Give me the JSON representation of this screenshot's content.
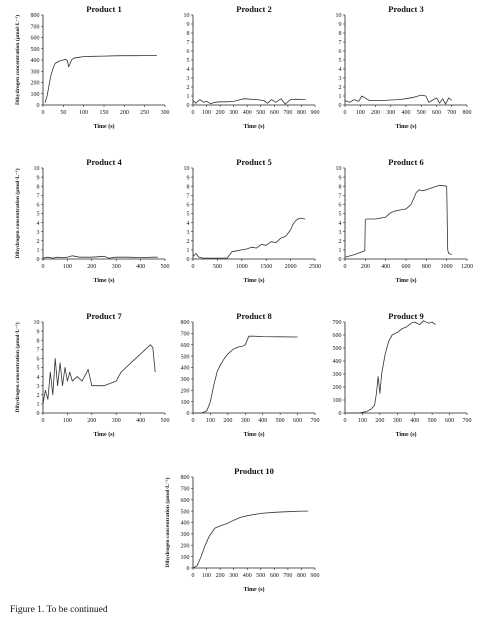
{
  "figure": {
    "caption": "Figure 1. To be continued",
    "ylabel": "Dihydrogen concentration (µmol·L⁻¹)",
    "xlabel": "Time (s)"
  },
  "chart_data": [
    {
      "type": "line",
      "title": "Product 1",
      "xlabel": "Time (s)",
      "ylabel": "Dihydrogen concentration (µmol·L⁻¹)",
      "xlim": [
        0,
        300
      ],
      "ylim": [
        0,
        800
      ],
      "xticks": [
        0,
        50,
        100,
        150,
        200,
        250,
        300
      ],
      "yticks": [
        0,
        100,
        200,
        300,
        400,
        500,
        600,
        700,
        800
      ],
      "series": [
        {
          "x": [
            5,
            10,
            15,
            20,
            25,
            30,
            40,
            50,
            55,
            60,
            63,
            66,
            70,
            75,
            80,
            90,
            100,
            125,
            150,
            175,
            200,
            225,
            250,
            280
          ],
          "y": [
            20,
            80,
            180,
            270,
            330,
            370,
            390,
            400,
            405,
            395,
            340,
            360,
            400,
            415,
            420,
            425,
            430,
            433,
            435,
            437,
            438,
            438,
            439,
            440
          ]
        }
      ]
    },
    {
      "type": "line",
      "title": "Product 2",
      "xlabel": "Time (s)",
      "ylabel": "",
      "xlim": [
        0,
        900
      ],
      "ylim": [
        0,
        10
      ],
      "xticks": [
        0,
        100,
        200,
        300,
        400,
        500,
        600,
        700,
        800,
        900
      ],
      "yticks": [
        0,
        1,
        2,
        3,
        4,
        5,
        6,
        7,
        8,
        9,
        10
      ],
      "series": [
        {
          "x": [
            0,
            20,
            50,
            80,
            100,
            130,
            160,
            200,
            250,
            300,
            350,
            380,
            420,
            470,
            520,
            550,
            580,
            610,
            650,
            680,
            720,
            760,
            800,
            830
          ],
          "y": [
            0.5,
            0.2,
            0.6,
            0.3,
            0.4,
            0.15,
            0.3,
            0.35,
            0.35,
            0.4,
            0.6,
            0.7,
            0.65,
            0.6,
            0.5,
            0.2,
            0.6,
            0.3,
            0.7,
            0.1,
            0.6,
            0.65,
            0.6,
            0.6
          ]
        }
      ]
    },
    {
      "type": "line",
      "title": "Product 3",
      "xlabel": "Time (s)",
      "ylabel": "",
      "xlim": [
        0,
        800
      ],
      "ylim": [
        0,
        10
      ],
      "xticks": [
        0,
        100,
        200,
        300,
        400,
        500,
        600,
        700,
        800
      ],
      "yticks": [
        0,
        1,
        2,
        3,
        4,
        5,
        6,
        7,
        8,
        9,
        10
      ],
      "series": [
        {
          "x": [
            0,
            30,
            60,
            90,
            110,
            130,
            160,
            200,
            250,
            300,
            350,
            400,
            450,
            500,
            530,
            550,
            570,
            600,
            620,
            640,
            660,
            680,
            700
          ],
          "y": [
            0.5,
            0.3,
            0.6,
            0.4,
            1.0,
            0.8,
            0.5,
            0.5,
            0.5,
            0.55,
            0.6,
            0.7,
            0.85,
            1.1,
            1.0,
            0.3,
            0.5,
            0.8,
            0.2,
            0.7,
            0.1,
            0.8,
            0.5
          ]
        }
      ]
    },
    {
      "type": "line",
      "title": "Product 4",
      "xlabel": "Time (s)",
      "ylabel": "Dihydrogen concentration (µmol·L⁻¹)",
      "xlim": [
        0,
        500
      ],
      "ylim": [
        0,
        10
      ],
      "xticks": [
        0,
        100,
        200,
        300,
        400,
        500
      ],
      "yticks": [
        0,
        1,
        2,
        3,
        4,
        5,
        6,
        7,
        8,
        9,
        10
      ],
      "series": [
        {
          "x": [
            0,
            20,
            40,
            60,
            80,
            100,
            120,
            150,
            200,
            250,
            270,
            300,
            350,
            400,
            450,
            470
          ],
          "y": [
            0.1,
            0.2,
            0.1,
            0.2,
            0.15,
            0.2,
            0.35,
            0.2,
            0.2,
            0.3,
            0.1,
            0.2,
            0.2,
            0.15,
            0.2,
            0.2
          ]
        }
      ]
    },
    {
      "type": "line",
      "title": "Product 5",
      "xlabel": "Time (s)",
      "ylabel": "",
      "xlim": [
        0,
        2500
      ],
      "ylim": [
        0,
        10
      ],
      "xticks": [
        0,
        500,
        1000,
        1500,
        2000,
        2500
      ],
      "yticks": [
        0,
        1,
        2,
        3,
        4,
        5,
        6,
        7,
        8,
        9,
        10
      ],
      "series": [
        {
          "x": [
            0,
            60,
            120,
            200,
            300,
            500,
            600,
            700,
            800,
            900,
            1000,
            1100,
            1200,
            1300,
            1400,
            1500,
            1600,
            1700,
            1800,
            1900,
            2000,
            2050,
            2100,
            2150,
            2200,
            2300
          ],
          "y": [
            0.3,
            0.6,
            0.2,
            0.1,
            0.1,
            0.1,
            0.1,
            0.1,
            0.8,
            0.9,
            1.0,
            1.1,
            1.3,
            1.2,
            1.6,
            1.5,
            1.9,
            1.8,
            2.3,
            2.5,
            3.2,
            3.8,
            4.2,
            4.4,
            4.5,
            4.4
          ]
        }
      ]
    },
    {
      "type": "line",
      "title": "Product 6",
      "xlabel": "Time (s)",
      "ylabel": "",
      "xlim": [
        0,
        1200
      ],
      "ylim": [
        0,
        10
      ],
      "xticks": [
        0,
        200,
        400,
        600,
        800,
        1000,
        1200
      ],
      "yticks": [
        0,
        1,
        2,
        3,
        4,
        5,
        6,
        7,
        8,
        9,
        10
      ],
      "series": [
        {
          "x": [
            0,
            100,
            195,
            200,
            210,
            300,
            400,
            450,
            500,
            550,
            600,
            650,
            700,
            730,
            760,
            800,
            850,
            900,
            930,
            1000,
            1010,
            1020,
            1050
          ],
          "y": [
            0.2,
            0.5,
            0.9,
            4.3,
            4.4,
            4.4,
            4.6,
            5.1,
            5.3,
            5.4,
            5.5,
            6.0,
            7.3,
            7.6,
            7.5,
            7.6,
            7.8,
            8.0,
            8.1,
            8.0,
            1.0,
            0.6,
            0.5
          ]
        }
      ]
    },
    {
      "type": "line",
      "title": "Product 7",
      "xlabel": "Time (s)",
      "ylabel": "Dihydrogen concentration (µmol·L⁻¹)",
      "xlim": [
        0,
        500
      ],
      "ylim": [
        0,
        10
      ],
      "xticks": [
        0,
        100,
        200,
        300,
        400,
        500
      ],
      "yticks": [
        0,
        1,
        2,
        3,
        4,
        5,
        6,
        7,
        8,
        9,
        10
      ],
      "series": [
        {
          "x": [
            0,
            10,
            20,
            30,
            40,
            50,
            60,
            70,
            80,
            90,
            100,
            110,
            120,
            140,
            160,
            180,
            185,
            200,
            250,
            300,
            320,
            340,
            360,
            380,
            400,
            420,
            440,
            450,
            460
          ],
          "y": [
            1.0,
            2.5,
            1.5,
            4.5,
            2.0,
            6.0,
            3.0,
            5.5,
            3.0,
            5.0,
            3.5,
            4.5,
            3.5,
            4.0,
            3.5,
            4.5,
            4.8,
            3.0,
            3.0,
            3.5,
            4.5,
            5.0,
            5.5,
            6.0,
            6.5,
            7.0,
            7.5,
            7.2,
            4.5
          ]
        }
      ]
    },
    {
      "type": "line",
      "title": "Product 8",
      "xlabel": "Time (s)",
      "ylabel": "",
      "xlim": [
        0,
        700
      ],
      "ylim": [
        0,
        800
      ],
      "xticks": [
        0,
        100,
        200,
        300,
        400,
        500,
        600,
        700
      ],
      "yticks": [
        0,
        100,
        200,
        300,
        400,
        500,
        600,
        700,
        800
      ],
      "series": [
        {
          "x": [
            0,
            50,
            80,
            100,
            120,
            140,
            160,
            180,
            200,
            230,
            260,
            290,
            300,
            320,
            350,
            400,
            500,
            600
          ],
          "y": [
            0,
            0,
            20,
            100,
            250,
            370,
            430,
            480,
            520,
            560,
            580,
            590,
            600,
            675,
            675,
            672,
            670,
            668
          ]
        }
      ]
    },
    {
      "type": "line",
      "title": "Product 9",
      "xlabel": "Time (s)",
      "ylabel": "",
      "xlim": [
        0,
        700
      ],
      "ylim": [
        0,
        700
      ],
      "xticks": [
        0,
        100,
        200,
        300,
        400,
        500,
        600,
        700
      ],
      "yticks": [
        0,
        100,
        200,
        300,
        400,
        500,
        600,
        700
      ],
      "series": [
        {
          "x": [
            0,
            50,
            80,
            120,
            150,
            170,
            180,
            190,
            200,
            210,
            230,
            250,
            270,
            300,
            330,
            350,
            380,
            400,
            430,
            450,
            480,
            500,
            520
          ],
          "y": [
            0,
            0,
            0,
            10,
            30,
            60,
            150,
            280,
            150,
            300,
            450,
            550,
            600,
            620,
            650,
            660,
            690,
            700,
            680,
            710,
            690,
            700,
            680
          ]
        }
      ]
    },
    {
      "type": "line",
      "title": "Product 10",
      "xlabel": "Time (s)",
      "ylabel": "Dihydrogen concentration (µmol·L⁻¹)",
      "xlim": [
        0,
        900
      ],
      "ylim": [
        0,
        800
      ],
      "xticks": [
        0,
        100,
        200,
        300,
        400,
        500,
        600,
        700,
        800,
        900
      ],
      "yticks": [
        0,
        100,
        200,
        300,
        400,
        500,
        600,
        700,
        800
      ],
      "series": [
        {
          "x": [
            0,
            30,
            60,
            90,
            120,
            150,
            160,
            200,
            250,
            300,
            350,
            400,
            500,
            600,
            700,
            800,
            850
          ],
          "y": [
            0,
            20,
            100,
            200,
            280,
            330,
            350,
            370,
            390,
            420,
            445,
            460,
            480,
            490,
            495,
            500,
            500
          ]
        }
      ]
    }
  ]
}
